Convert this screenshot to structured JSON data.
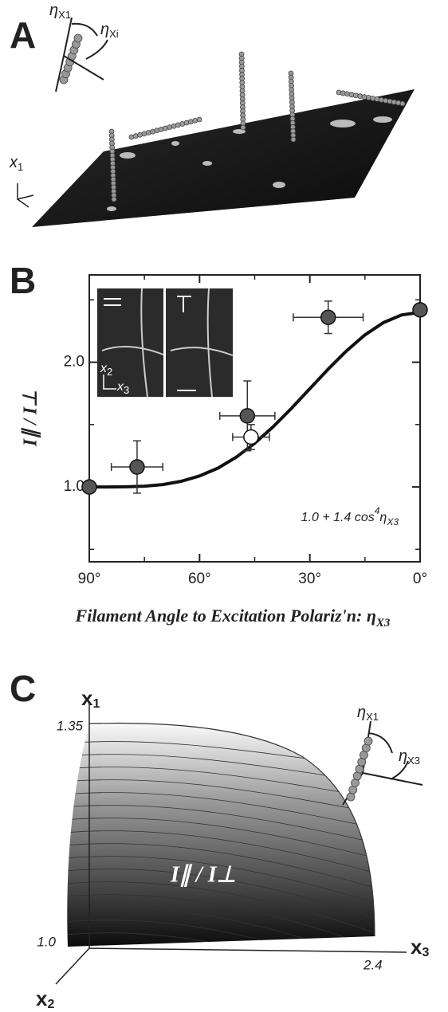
{
  "panel_a": {
    "label": "A",
    "inset": {
      "eta_1": {
        "symbol": "η",
        "sub": "X1"
      },
      "eta_i": {
        "symbol": "η",
        "sub": "Xi"
      }
    },
    "axis": {
      "symbol": "x",
      "sub": "1"
    }
  },
  "chart_data": {
    "type": "scatter",
    "panel_label": "B",
    "xlabel": {
      "text": "Filament Angle to Excitation Polariz'n: η",
      "sub": "X3"
    },
    "ylabel": "I∥ / I⊥",
    "annotation": {
      "text": "1.0 + 1.4 cos",
      "sup": "4",
      "eta": "η",
      "sub": "X3"
    },
    "xlim": [
      90,
      0
    ],
    "ylim": [
      0.4,
      2.7
    ],
    "xticks": [
      {
        "value": 90,
        "label": "90°"
      },
      {
        "value": 60,
        "label": "60°"
      },
      {
        "value": 30,
        "label": "30°"
      },
      {
        "value": 0,
        "label": "0°"
      }
    ],
    "xticks_minor": [
      75,
      45,
      15
    ],
    "yticks": [
      {
        "value": 1,
        "label": "1.0"
      },
      {
        "value": 2,
        "label": "2.0"
      }
    ],
    "yticks_minor": [
      0.5,
      1.5,
      2.5
    ],
    "points": {
      "color": "#555555",
      "x": [
        90,
        77,
        47,
        25,
        0
      ],
      "y": [
        1.0,
        1.16,
        1.57,
        2.36,
        2.42
      ],
      "xerr": [
        0,
        7,
        7.5,
        9.5,
        0
      ],
      "yerr": [
        0,
        0.21,
        0.28,
        0.13,
        0
      ]
    },
    "open_point": {
      "color": "#ffffff",
      "x": [
        46
      ],
      "y": [
        1.4
      ],
      "xerr": [
        5
      ],
      "yerr": [
        0.1
      ]
    },
    "fit": {
      "color": "#111111",
      "x": [
        90,
        85,
        80,
        75,
        70,
        65,
        60,
        55,
        50,
        45,
        40,
        35,
        30,
        25,
        20,
        15,
        10,
        5,
        0
      ],
      "y": [
        1.0,
        1.0,
        1.001,
        1.006,
        1.019,
        1.045,
        1.088,
        1.151,
        1.239,
        1.35,
        1.482,
        1.63,
        1.788,
        1.945,
        2.092,
        2.219,
        2.317,
        2.379,
        2.4
      ]
    },
    "inset_axes": {
      "vertical": {
        "symbol": "x",
        "sub": "2"
      },
      "horizontal": {
        "symbol": "x",
        "sub": "3"
      }
    }
  },
  "panel_c": {
    "label": "C",
    "axes": {
      "x1": {
        "symbol": "x",
        "sub": "1"
      },
      "x2": {
        "symbol": "x",
        "sub": "2"
      },
      "x3": {
        "symbol": "x",
        "sub": "3"
      }
    },
    "x1_top": "1.35",
    "x1_bottom": "1.0",
    "x3_end": "2.4",
    "surface_label": "I∥ / I⊥",
    "inset": {
      "eta_1": {
        "symbol": "η",
        "sub": "X1"
      },
      "eta_3": {
        "symbol": "η",
        "sub": "X3"
      }
    }
  }
}
